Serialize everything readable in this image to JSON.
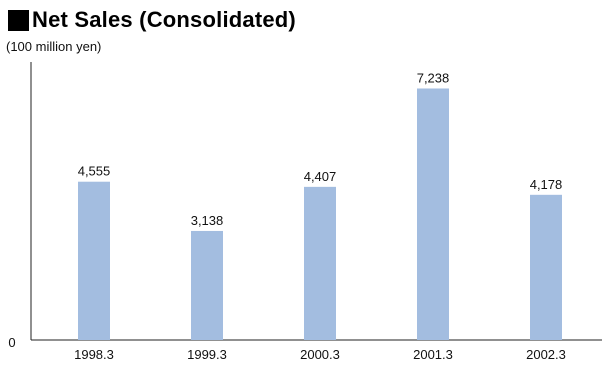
{
  "chart_data": {
    "type": "bar",
    "title": "Net Sales (Consolidated)",
    "ylabel": "(100 million yen)",
    "xlabel": "",
    "categories": [
      "1998.3",
      "1999.3",
      "2000.3",
      "2001.3",
      "2002.3"
    ],
    "values": [
      4555,
      3138,
      4407,
      7238,
      4178
    ],
    "value_labels": [
      "4,555",
      "3,138",
      "4,407",
      "7,238",
      "4,178"
    ],
    "y_tick_labels": [
      "0"
    ],
    "ylim": [
      0,
      8000
    ],
    "grid": false,
    "legend": "none",
    "bar_color": "#a3bde0"
  }
}
